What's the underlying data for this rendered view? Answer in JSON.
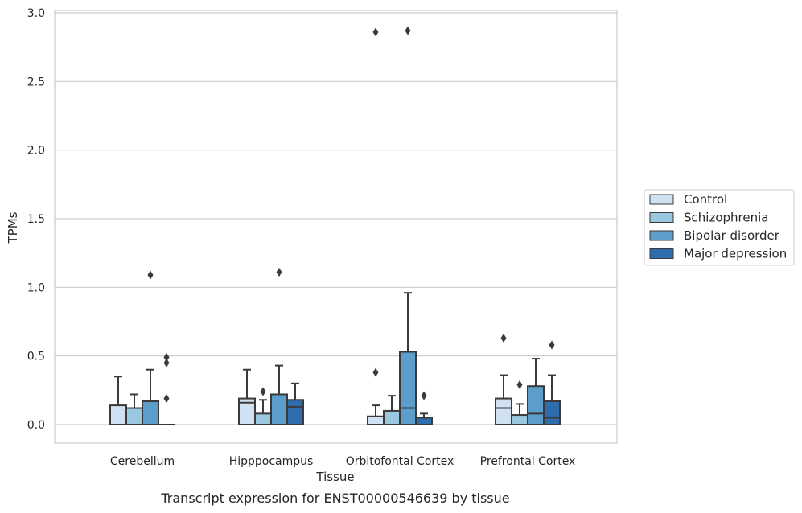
{
  "chart_data": {
    "type": "box",
    "xlabel": "Tissue",
    "ylabel": "TPMs",
    "caption": "Transcript expression for ENST00000546639 by tissue",
    "ylim": [
      -0.14,
      3.02
    ],
    "yticks": [
      "0.0",
      "0.5",
      "1.0",
      "1.5",
      "2.0",
      "2.5",
      "3.0"
    ],
    "grid": "horizontal",
    "legend_position": "right",
    "categories": [
      "Cerebellum",
      "Hipppocampus",
      "Orbitofontal Cortex",
      "Prefrontal Cortex"
    ],
    "series": [
      {
        "name": "Control",
        "color": "#d0e1f2",
        "boxes": [
          {
            "q1": 0.0,
            "median": 0.0,
            "q3": 0.14,
            "whisker_low": 0.0,
            "whisker_high": 0.35,
            "outliers": []
          },
          {
            "q1": 0.0,
            "median": 0.16,
            "q3": 0.19,
            "whisker_low": 0.0,
            "whisker_high": 0.4,
            "outliers": []
          },
          {
            "q1": 0.0,
            "median": 0.0,
            "q3": 0.06,
            "whisker_low": 0.0,
            "whisker_high": 0.14,
            "outliers": [
              0.38,
              2.86
            ]
          },
          {
            "q1": 0.0,
            "median": 0.12,
            "q3": 0.19,
            "whisker_low": 0.0,
            "whisker_high": 0.36,
            "outliers": [
              0.63
            ]
          }
        ]
      },
      {
        "name": "Schizophrenia",
        "color": "#9ac8e0",
        "boxes": [
          {
            "q1": 0.0,
            "median": 0.0,
            "q3": 0.12,
            "whisker_low": 0.0,
            "whisker_high": 0.22,
            "outliers": []
          },
          {
            "q1": 0.0,
            "median": 0.0,
            "q3": 0.08,
            "whisker_low": 0.0,
            "whisker_high": 0.18,
            "outliers": [
              0.24
            ]
          },
          {
            "q1": 0.0,
            "median": 0.0,
            "q3": 0.1,
            "whisker_low": 0.0,
            "whisker_high": 0.21,
            "outliers": []
          },
          {
            "q1": 0.0,
            "median": 0.0,
            "q3": 0.07,
            "whisker_low": 0.0,
            "whisker_high": 0.15,
            "outliers": [
              0.29
            ]
          }
        ]
      },
      {
        "name": "Bipolar disorder",
        "color": "#5a9ec9",
        "boxes": [
          {
            "q1": 0.0,
            "median": 0.0,
            "q3": 0.17,
            "whisker_low": 0.0,
            "whisker_high": 0.4,
            "outliers": [
              1.09
            ]
          },
          {
            "q1": 0.0,
            "median": 0.0,
            "q3": 0.22,
            "whisker_low": 0.0,
            "whisker_high": 0.43,
            "outliers": [
              1.11
            ]
          },
          {
            "q1": 0.0,
            "median": 0.12,
            "q3": 0.53,
            "whisker_low": 0.0,
            "whisker_high": 0.96,
            "outliers": [
              2.87
            ]
          },
          {
            "q1": 0.0,
            "median": 0.08,
            "q3": 0.28,
            "whisker_low": 0.0,
            "whisker_high": 0.48,
            "outliers": []
          }
        ]
      },
      {
        "name": "Major depression",
        "color": "#2f6eae",
        "boxes": [
          {
            "q1": 0.0,
            "median": 0.0,
            "q3": 0.0,
            "whisker_low": 0.0,
            "whisker_high": 0.0,
            "outliers": [
              0.19,
              0.45,
              0.49
            ]
          },
          {
            "q1": 0.0,
            "median": 0.13,
            "q3": 0.18,
            "whisker_low": 0.0,
            "whisker_high": 0.3,
            "outliers": []
          },
          {
            "q1": 0.0,
            "median": 0.0,
            "q3": 0.05,
            "whisker_low": 0.0,
            "whisker_high": 0.08,
            "outliers": [
              0.21
            ]
          },
          {
            "q1": 0.0,
            "median": 0.05,
            "q3": 0.17,
            "whisker_low": 0.0,
            "whisker_high": 0.36,
            "outliers": [
              0.58
            ]
          }
        ]
      }
    ]
  }
}
